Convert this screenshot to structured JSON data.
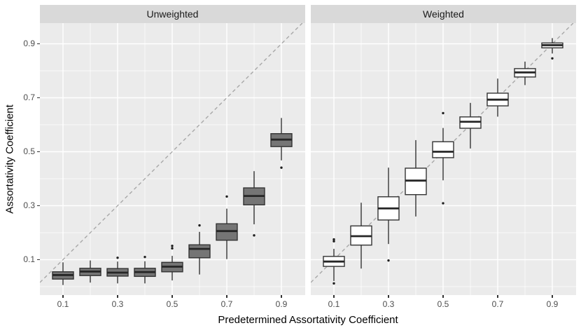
{
  "chart_data": {
    "type": "boxplot",
    "title": "",
    "xlabel": "Predetermined Assortativity Coefficient",
    "ylabel": "Assortativity Coefficient",
    "x_tick_labels": [
      "0.1",
      "0.3",
      "0.5",
      "0.7",
      "0.9"
    ],
    "x_tick_values": [
      0.1,
      0.3,
      0.5,
      0.7,
      0.9
    ],
    "y_tick_labels": [
      "0.1",
      "0.3",
      "0.5",
      "0.7",
      "0.9"
    ],
    "y_tick_values": [
      0.1,
      0.3,
      0.5,
      0.7,
      0.9
    ],
    "x_minor_values": [
      0.2,
      0.4,
      0.6,
      0.8
    ],
    "y_minor_values": [
      0.0,
      0.2,
      0.4,
      0.6,
      0.8
    ],
    "xlim": [
      0.0154,
      0.9872
    ],
    "ylim": [
      -0.0312,
      0.9766
    ],
    "grid": true,
    "legend": "none",
    "reference_line": {
      "type": "identity y = x",
      "style": "dashed",
      "color": "#A8A8A8"
    },
    "panels": [
      {
        "title": "Unweighted",
        "box_fill": "#757575",
        "boxes": [
          {
            "x": 0.1,
            "whisker_low": 0.006,
            "q1": 0.028,
            "median": 0.043,
            "q3": 0.055,
            "whisker_high": 0.09,
            "outliers": []
          },
          {
            "x": 0.2,
            "whisker_low": 0.015,
            "q1": 0.041,
            "median": 0.056,
            "q3": 0.068,
            "whisker_high": 0.097,
            "outliers": []
          },
          {
            "x": 0.3,
            "whisker_low": 0.012,
            "q1": 0.039,
            "median": 0.052,
            "q3": 0.067,
            "whisker_high": 0.093,
            "outliers": [
              0.107
            ]
          },
          {
            "x": 0.4,
            "whisker_low": 0.012,
            "q1": 0.038,
            "median": 0.054,
            "q3": 0.068,
            "whisker_high": 0.094,
            "outliers": [
              0.11
            ]
          },
          {
            "x": 0.5,
            "whisker_low": 0.023,
            "q1": 0.055,
            "median": 0.074,
            "q3": 0.09,
            "whisker_high": 0.114,
            "outliers": [
              0.142,
              0.151
            ]
          },
          {
            "x": 0.6,
            "whisker_low": 0.045,
            "q1": 0.107,
            "median": 0.14,
            "q3": 0.155,
            "whisker_high": 0.203,
            "outliers": [
              0.227
            ]
          },
          {
            "x": 0.7,
            "whisker_low": 0.102,
            "q1": 0.172,
            "median": 0.206,
            "q3": 0.233,
            "whisker_high": 0.289,
            "outliers": [
              0.334
            ]
          },
          {
            "x": 0.8,
            "whisker_low": 0.231,
            "q1": 0.303,
            "median": 0.336,
            "q3": 0.366,
            "whisker_high": 0.428,
            "outliers": [
              0.19
            ]
          },
          {
            "x": 0.9,
            "whisker_low": 0.468,
            "q1": 0.519,
            "median": 0.545,
            "q3": 0.567,
            "whisker_high": 0.625,
            "outliers": [
              0.441
            ]
          }
        ]
      },
      {
        "title": "Weighted",
        "box_fill": "#FFFFFF",
        "boxes": [
          {
            "x": 0.1,
            "whisker_low": 0.021,
            "q1": 0.075,
            "median": 0.093,
            "q3": 0.112,
            "whisker_high": 0.14,
            "outliers": [
              0.168,
              0.175,
              0.012
            ]
          },
          {
            "x": 0.2,
            "whisker_low": 0.067,
            "q1": 0.154,
            "median": 0.187,
            "q3": 0.225,
            "whisker_high": 0.311,
            "outliers": []
          },
          {
            "x": 0.3,
            "whisker_low": 0.158,
            "q1": 0.247,
            "median": 0.29,
            "q3": 0.333,
            "whisker_high": 0.441,
            "outliers": [
              0.097
            ]
          },
          {
            "x": 0.4,
            "whisker_low": 0.26,
            "q1": 0.341,
            "median": 0.393,
            "q3": 0.439,
            "whisker_high": 0.543,
            "outliers": []
          },
          {
            "x": 0.5,
            "whisker_low": 0.394,
            "q1": 0.478,
            "median": 0.5,
            "q3": 0.537,
            "whisker_high": 0.588,
            "outliers": [
              0.309,
              0.643
            ]
          },
          {
            "x": 0.6,
            "whisker_low": 0.512,
            "q1": 0.587,
            "median": 0.611,
            "q3": 0.629,
            "whisker_high": 0.681,
            "outliers": []
          },
          {
            "x": 0.7,
            "whisker_low": 0.63,
            "q1": 0.67,
            "median": 0.693,
            "q3": 0.717,
            "whisker_high": 0.771,
            "outliers": []
          },
          {
            "x": 0.8,
            "whisker_low": 0.747,
            "q1": 0.777,
            "median": 0.794,
            "q3": 0.808,
            "whisker_high": 0.834,
            "outliers": []
          },
          {
            "x": 0.9,
            "whisker_low": 0.864,
            "q1": 0.885,
            "median": 0.895,
            "q3": 0.903,
            "whisker_high": 0.921,
            "outliers": [
              0.846
            ]
          }
        ]
      }
    ],
    "colors": {
      "background": "#FFFFFF",
      "panel_bg": "#EBEBEB",
      "strip_bg": "#D9D9D9",
      "grid": "#FFFFFF",
      "box_stroke": "#333333",
      "median_stroke": "#262626",
      "outlier": "#1F1F1F",
      "ref_line": "#A8A8A8",
      "axis_text": "#4D4D4D",
      "title_text": "#000000"
    }
  }
}
